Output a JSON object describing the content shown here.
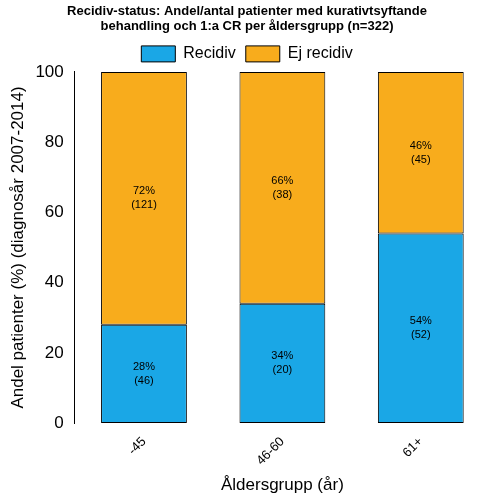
{
  "chart_data": {
    "type": "bar",
    "title": "Recidiv-status: Andel/antal patienter med kurativtsyftande\nbehandling och 1:a CR per åldersgrupp (n=322)",
    "x_label": "Åldersgrupp (år)",
    "y_label": "Andel patienter (%) (diagnosår 2007-2014)",
    "categories": [
      "-45",
      "46-60",
      "61+"
    ],
    "series": [
      {
        "name": "Recidiv",
        "color": "#1aa7e6",
        "values": [
          28,
          34,
          54
        ],
        "value_labels": [
          [
            "28%",
            "(46)"
          ],
          [
            "34%",
            "(20)"
          ],
          [
            "54%",
            "(52)"
          ]
        ]
      },
      {
        "name": "Ej recidiv",
        "color": "#f8ac1c",
        "values": [
          72,
          66,
          46
        ],
        "value_labels": [
          [
            "72%",
            "(121)"
          ],
          [
            "66%",
            "(38)"
          ],
          [
            "46%",
            "(45)"
          ]
        ]
      }
    ],
    "stacked": true,
    "data_labels": true,
    "ylim": [
      0,
      100
    ],
    "yticks": [
      0,
      20,
      40,
      60,
      80,
      100
    ],
    "grid": false,
    "legend": "top"
  }
}
